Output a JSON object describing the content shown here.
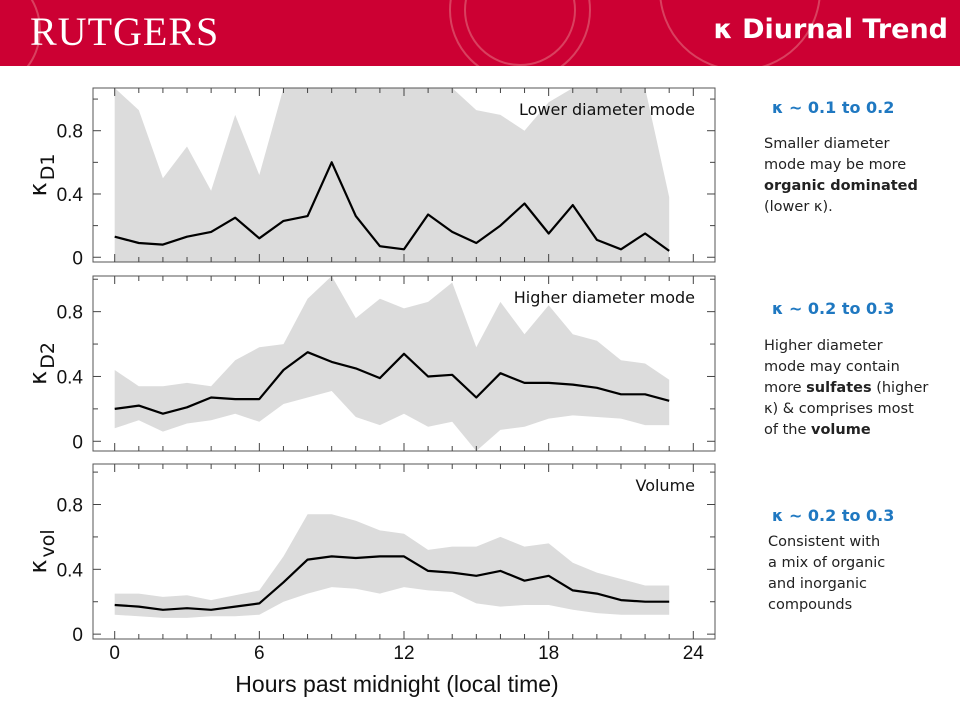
{
  "header": {
    "logo_text": "RUTGERS",
    "title": "κ Diurnal Trend",
    "color": "#cc0033"
  },
  "chart_data": [
    {
      "type": "line",
      "panel_label": "Lower diameter mode",
      "ylabel": "κ",
      "ylabel_sub": "D1",
      "yticks": [
        0,
        0.4,
        0.8
      ],
      "ytick_labels": [
        "0",
        "0.4",
        "0.8"
      ],
      "ylim": [
        -0.03,
        1.07
      ],
      "x": [
        0,
        1,
        2,
        3,
        4,
        5,
        6,
        7,
        8,
        9,
        10,
        11,
        12,
        13,
        14,
        15,
        16,
        17,
        18,
        19,
        20,
        21,
        22,
        23
      ],
      "series": [
        {
          "values": [
            0.13,
            0.09,
            0.08,
            0.13,
            0.16,
            0.25,
            0.12,
            0.23,
            0.26,
            0.6,
            0.26,
            0.07,
            0.05,
            0.27,
            0.16,
            0.09,
            0.2,
            0.34,
            0.15,
            0.33,
            0.11,
            0.05,
            0.15,
            0.04
          ]
        }
      ],
      "band_upper": [
        1.07,
        0.93,
        0.5,
        0.7,
        0.42,
        0.9,
        0.52,
        1.07,
        1.07,
        1.07,
        1.07,
        1.07,
        1.07,
        1.07,
        1.07,
        0.93,
        0.9,
        0.8,
        0.98,
        1.07,
        1.07,
        1.07,
        1.07,
        0.38
      ],
      "band_lower": [
        -0.03,
        -0.03,
        -0.03,
        -0.03,
        -0.03,
        -0.03,
        -0.03,
        -0.03,
        -0.03,
        -0.03,
        -0.03,
        -0.03,
        -0.03,
        -0.03,
        -0.03,
        -0.03,
        -0.03,
        -0.03,
        -0.03,
        -0.03,
        -0.03,
        -0.03,
        -0.03,
        -0.03
      ]
    },
    {
      "type": "line",
      "panel_label": "Higher diameter mode",
      "ylabel": "κ",
      "ylabel_sub": "D2",
      "yticks": [
        0,
        0.4,
        0.8
      ],
      "ytick_labels": [
        "0",
        "0.4",
        "0.8"
      ],
      "ylim": [
        -0.06,
        1.02
      ],
      "x": [
        0,
        1,
        2,
        3,
        4,
        5,
        6,
        7,
        8,
        9,
        10,
        11,
        12,
        13,
        14,
        15,
        16,
        17,
        18,
        19,
        20,
        21,
        22,
        23
      ],
      "series": [
        {
          "values": [
            0.2,
            0.22,
            0.17,
            0.21,
            0.27,
            0.26,
            0.26,
            0.44,
            0.55,
            0.49,
            0.45,
            0.39,
            0.54,
            0.4,
            0.41,
            0.27,
            0.42,
            0.36,
            0.36,
            0.35,
            0.33,
            0.29,
            0.29,
            0.25
          ]
        }
      ],
      "band_upper": [
        0.44,
        0.34,
        0.34,
        0.36,
        0.34,
        0.5,
        0.58,
        0.6,
        0.88,
        1.02,
        0.76,
        0.88,
        0.82,
        0.86,
        0.98,
        0.58,
        0.86,
        0.66,
        0.84,
        0.66,
        0.62,
        0.5,
        0.48,
        0.38
      ],
      "band_lower": [
        0.08,
        0.13,
        0.06,
        0.11,
        0.13,
        0.17,
        0.12,
        0.23,
        0.27,
        0.31,
        0.15,
        0.1,
        0.17,
        0.09,
        0.12,
        -0.06,
        0.07,
        0.09,
        0.14,
        0.16,
        0.15,
        0.14,
        0.1,
        0.1
      ]
    },
    {
      "type": "line",
      "panel_label": "Volume",
      "ylabel": "κ",
      "ylabel_sub": "vol",
      "yticks": [
        0,
        0.4,
        0.8
      ],
      "ytick_labels": [
        "0",
        "0.4",
        "0.8"
      ],
      "ylim": [
        -0.03,
        1.05
      ],
      "x": [
        0,
        1,
        2,
        3,
        4,
        5,
        6,
        7,
        8,
        9,
        10,
        11,
        12,
        13,
        14,
        15,
        16,
        17,
        18,
        19,
        20,
        21,
        22,
        23
      ],
      "series": [
        {
          "values": [
            0.18,
            0.17,
            0.15,
            0.16,
            0.15,
            0.17,
            0.19,
            0.32,
            0.46,
            0.48,
            0.47,
            0.48,
            0.48,
            0.39,
            0.38,
            0.36,
            0.39,
            0.33,
            0.36,
            0.27,
            0.25,
            0.21,
            0.2,
            0.2
          ]
        }
      ],
      "band_upper": [
        0.25,
        0.25,
        0.23,
        0.24,
        0.21,
        0.24,
        0.27,
        0.48,
        0.74,
        0.74,
        0.7,
        0.64,
        0.62,
        0.52,
        0.54,
        0.54,
        0.6,
        0.54,
        0.56,
        0.44,
        0.38,
        0.34,
        0.3,
        0.3
      ],
      "band_lower": [
        0.12,
        0.11,
        0.1,
        0.1,
        0.11,
        0.11,
        0.12,
        0.2,
        0.25,
        0.29,
        0.28,
        0.25,
        0.29,
        0.27,
        0.26,
        0.19,
        0.17,
        0.18,
        0.18,
        0.15,
        0.13,
        0.12,
        0.12,
        0.12
      ]
    }
  ],
  "x_axis": {
    "label": "Hours past midnight (local time)",
    "ticks": [
      0,
      6,
      12,
      18,
      24
    ],
    "tick_labels": [
      "0",
      "6",
      "12",
      "18",
      "24"
    ]
  },
  "notes": [
    {
      "heading": "κ ~ 0.1 to 0.2",
      "heading_color": "#1f78c1",
      "lines": [
        [
          {
            "t": "Smaller diameter"
          }
        ],
        [
          {
            "t": "mode may be more"
          }
        ],
        [
          {
            "t": "organic dominated",
            "b": true
          }
        ],
        [
          {
            "t": "(lower κ)."
          }
        ]
      ]
    },
    {
      "heading": "κ ~ 0.2 to 0.3",
      "heading_color": "#1f78c1",
      "lines": [
        [
          {
            "t": "Higher diameter"
          }
        ],
        [
          {
            "t": "mode may contain"
          }
        ],
        [
          {
            "t": "more "
          },
          {
            "t": "sulfates",
            "b": true
          },
          {
            "t": " (higher"
          }
        ],
        [
          {
            "t": "κ) & comprises most"
          }
        ],
        [
          {
            "t": "of the "
          },
          {
            "t": "volume",
            "b": true
          }
        ]
      ]
    },
    {
      "heading": "κ ~ 0.2 to 0.3",
      "heading_color": "#1f78c1",
      "lines": [
        [
          {
            "t": "Consistent with"
          }
        ],
        [
          {
            "t": "a mix of organic"
          }
        ],
        [
          {
            "t": "and inorganic"
          }
        ],
        [
          {
            "t": "compounds"
          }
        ]
      ]
    }
  ]
}
